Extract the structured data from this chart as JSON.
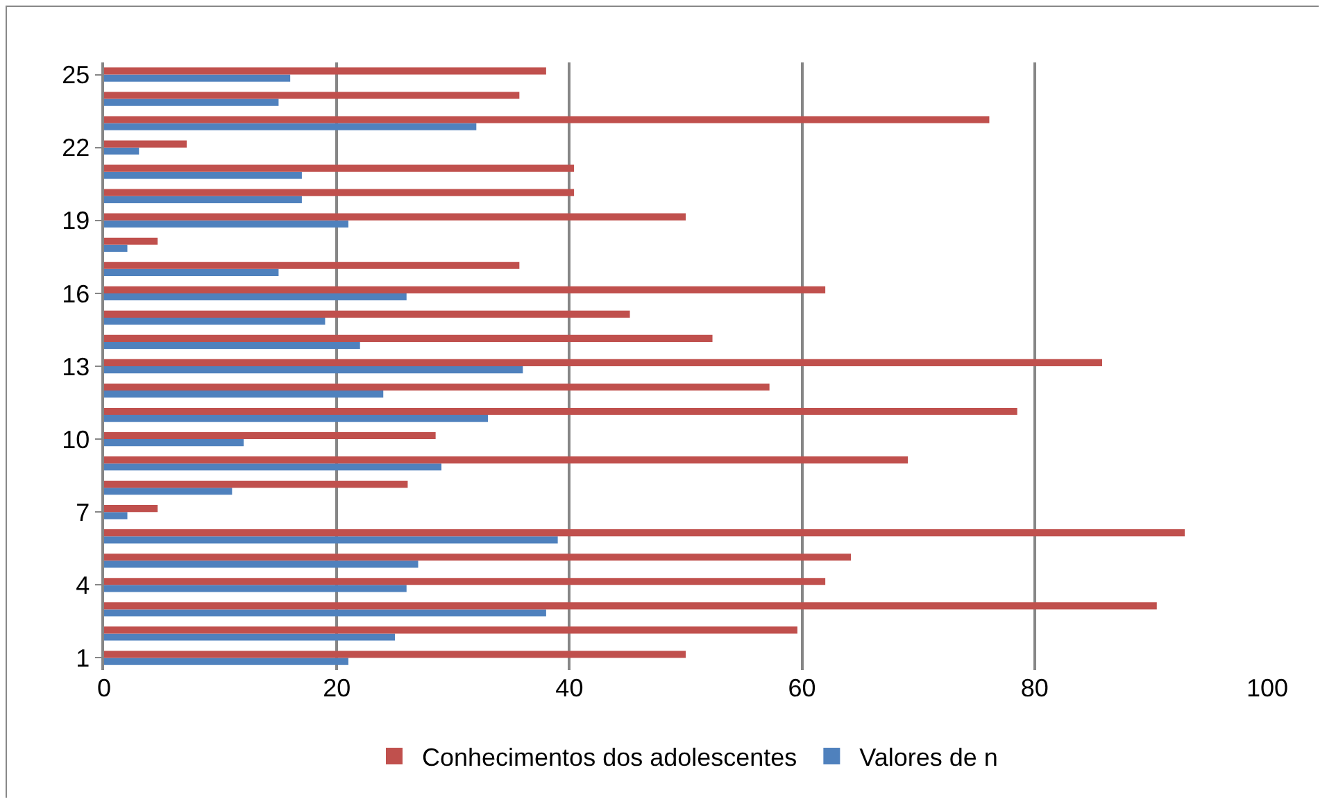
{
  "chart_data": {
    "type": "bar",
    "orientation": "horizontal",
    "categories": [
      "25",
      null,
      null,
      "22",
      null,
      null,
      "19",
      null,
      null,
      "16",
      null,
      null,
      "13",
      null,
      null,
      "10",
      null,
      null,
      "7",
      null,
      null,
      "4",
      null,
      null,
      "1"
    ],
    "series": [
      {
        "name": "Conhecimentos dos adolescentes",
        "color": "#c0504d",
        "values": [
          38,
          35.7,
          76.1,
          7.1,
          40.4,
          40.4,
          50,
          4.6,
          35.7,
          62,
          45.2,
          52.3,
          85.8,
          57.2,
          78.5,
          28.5,
          69.1,
          26.1,
          4.6,
          92.9,
          64.2,
          62,
          90.5,
          59.6,
          50
        ]
      },
      {
        "name": "Valores de n",
        "color": "#4f81bd",
        "values": [
          16,
          15,
          32,
          3,
          17,
          17,
          21,
          2,
          15,
          26,
          19,
          22,
          36,
          24,
          33,
          12,
          29,
          11,
          2,
          39,
          27,
          26,
          38,
          25,
          21
        ]
      }
    ],
    "xlim": [
      0,
      100
    ],
    "xticks": [
      0,
      20,
      40,
      60,
      80,
      100
    ],
    "grid": "x",
    "legend": "bottom"
  }
}
